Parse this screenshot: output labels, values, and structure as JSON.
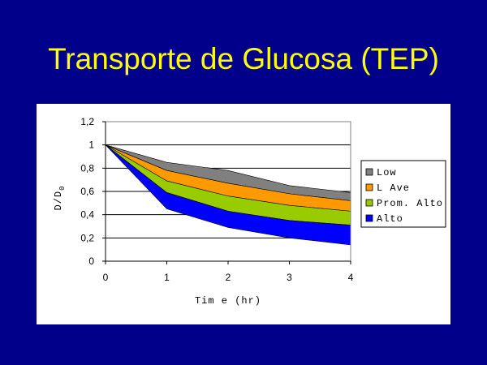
{
  "slide": {
    "title": "Transporte de Glucosa (TEP)",
    "background_color": "#00008b",
    "title_color": "#ffff00"
  },
  "chart_data": {
    "type": "area",
    "title": "",
    "xlabel": "Tim e (hr)",
    "ylabel": "D/D0",
    "x": [
      0,
      1,
      2,
      3,
      4
    ],
    "x_ticks": [
      "0",
      "1",
      "2",
      "3",
      "4"
    ],
    "y_ticks": [
      "0",
      "0,2",
      "0,4",
      "0,6",
      "0,8",
      "1",
      "1,2"
    ],
    "xlim": [
      0,
      4
    ],
    "ylim": [
      0,
      1.2
    ],
    "grid": "horizontal",
    "legend_position": "right",
    "series": [
      {
        "name": "Low",
        "color": "#808080",
        "values": [
          1.0,
          0.85,
          0.78,
          0.65,
          0.59
        ]
      },
      {
        "name": "L  Ave",
        "color": "#ff9900",
        "values": [
          1.0,
          0.78,
          0.67,
          0.58,
          0.52
        ]
      },
      {
        "name": "Prom. Alto",
        "color": "#99cc00",
        "values": [
          1.0,
          0.69,
          0.56,
          0.48,
          0.43
        ]
      },
      {
        "name": "Alto",
        "color": "#0000ff",
        "values": [
          1.0,
          0.59,
          0.43,
          0.35,
          0.31
        ]
      }
    ],
    "base_values": [
      1.0,
      0.45,
      0.29,
      0.2,
      0.14
    ]
  }
}
